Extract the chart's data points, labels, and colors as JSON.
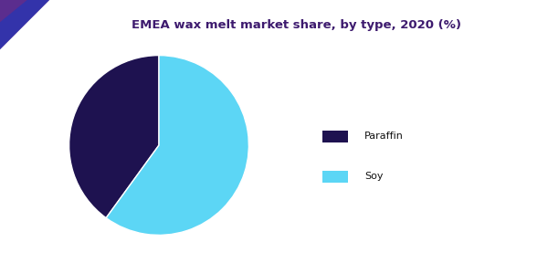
{
  "title": "EMEA wax melt market share, by type, 2020 (%)",
  "title_color": "#3d1a6e",
  "title_fontsize": 9.5,
  "background_color": "#ffffff",
  "pie_colors": [
    "#1e1250",
    "#5cd6f5"
  ],
  "pie_values": [
    40,
    60
  ],
  "legend_labels": [
    "Paraffin",
    "Soy"
  ],
  "legend_colors": [
    "#1e1250",
    "#5cd6f5"
  ],
  "startangle": 90,
  "wedge_edge_color": "#ffffff",
  "triangle_color": "#5b2d8e",
  "line_color_left": "#3366cc",
  "line_color_right": "#7b2fbe"
}
